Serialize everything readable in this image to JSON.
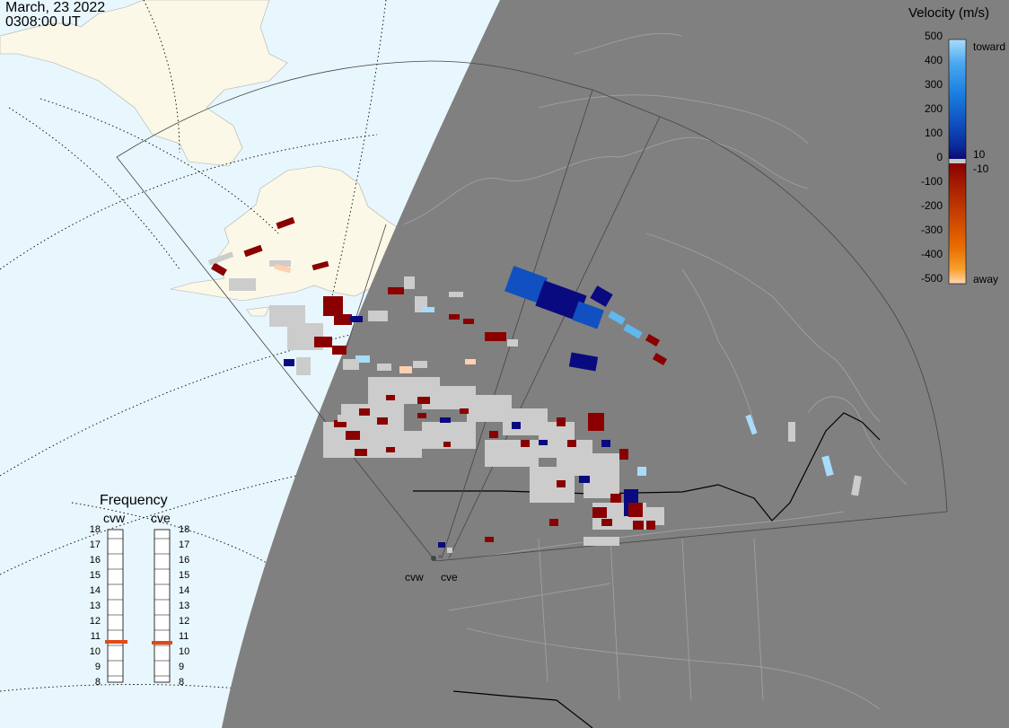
{
  "header": {
    "date": "March, 23 2022",
    "time": "0308:00 UT"
  },
  "colorbar": {
    "title": "Velocity (m/s)",
    "ticks": [
      "500",
      "400",
      "300",
      "200",
      "100",
      "0",
      "-100",
      "-200",
      "-300",
      "-400",
      "-500"
    ],
    "label_toward": "toward",
    "label_10": "10",
    "label_neg10": "-10",
    "label_away": "away",
    "colors": {
      "toward_gradient": [
        "#0a0a70",
        "#0a2a9a",
        "#1050c0",
        "#1a80e0",
        "#4aa8f0",
        "#a8dcfa"
      ],
      "away_gradient": [
        "#8a0000",
        "#a82000",
        "#cc4400",
        "#e86e00",
        "#f8a030",
        "#ffd8b0"
      ],
      "zero_band": "#c8c8c8"
    }
  },
  "frequency_panel": {
    "title": "Frequency",
    "radars": [
      "cvw",
      "cve"
    ],
    "scale": [
      "18",
      "17",
      "16",
      "15",
      "14",
      "13",
      "12",
      "11",
      "10",
      "9",
      "8"
    ],
    "cvw_mhz": 10.7,
    "cve_mhz": 10.6,
    "indicator_color": "#e04a1a"
  },
  "radar_sites": [
    "cvw",
    "cve"
  ],
  "map_colors": {
    "ocean_day": "#e8f6fd",
    "land_day": "#fbf8e8",
    "night_shade": "#808080",
    "ground_scatter": "#cccccc",
    "boundaries": "#a0a0a0"
  }
}
